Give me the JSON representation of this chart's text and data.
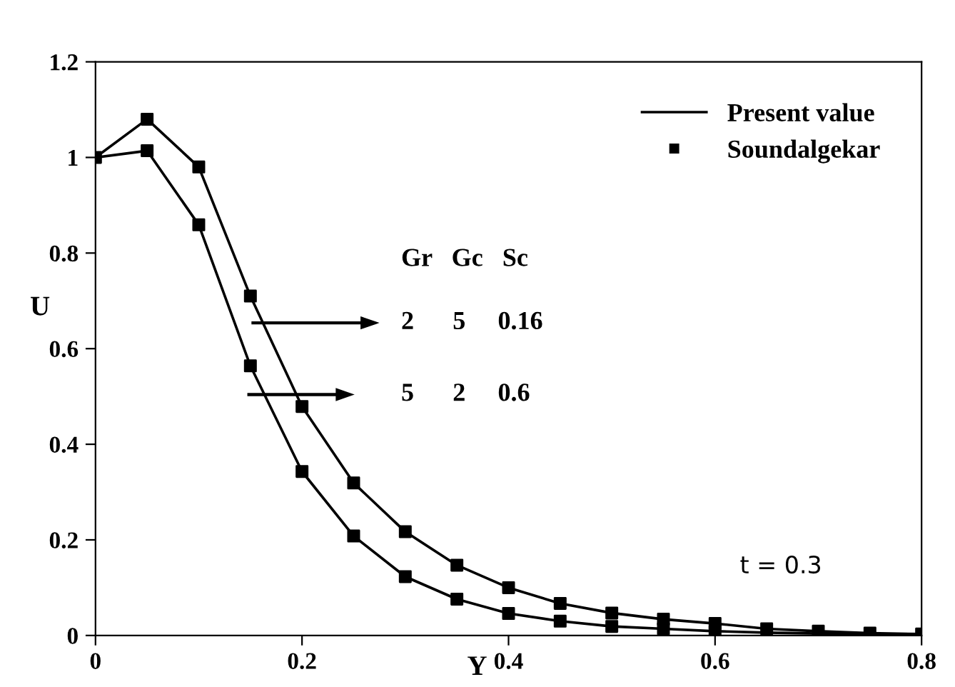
{
  "chart_data": {
    "type": "line",
    "xlabel": "Y",
    "ylabel": "U",
    "x": [
      0,
      0.05,
      0.1,
      0.15,
      0.2,
      0.25,
      0.3,
      0.35,
      0.4,
      0.45,
      0.5,
      0.55,
      0.6,
      0.65,
      0.7,
      0.75,
      0.8
    ],
    "series": [
      {
        "name": "Present value",
        "color": "#000000",
        "marker": "none",
        "line_style": "solid",
        "values": [
          1.0,
          1.08,
          0.98,
          0.71,
          0.479,
          0.319,
          0.217,
          0.147,
          0.1,
          0.067,
          0.047,
          0.034,
          0.025,
          0.014,
          0.009,
          0.005,
          0.003
        ]
      },
      {
        "color": "#000000",
        "marker": "none",
        "line_style": "solid",
        "values": [
          1.0,
          1.014,
          0.859,
          0.564,
          0.343,
          0.208,
          0.123,
          0.076,
          0.046,
          0.03,
          0.019,
          0.014,
          0.009,
          0.006,
          0.004,
          0.003,
          0.002
        ]
      },
      {
        "type": "scatter",
        "name": "Soundalgekar",
        "color": "#000000",
        "marker": "square",
        "values": [
          1.0,
          1.08,
          0.98,
          0.71,
          0.479,
          0.319,
          0.217,
          0.147,
          0.1,
          0.067,
          0.047,
          0.034,
          0.025,
          0.014,
          0.009,
          0.005,
          0.003
        ]
      },
      {
        "type": "scatter",
        "color": "#000000",
        "marker": "square",
        "values": [
          null,
          1.014,
          0.859,
          0.564,
          0.343,
          0.208,
          0.123,
          0.076,
          0.046,
          0.03,
          0.019,
          0.014,
          0.009,
          null,
          null,
          null,
          null
        ]
      }
    ],
    "xlim": [
      0,
      0.8
    ],
    "xticks": [
      0,
      0.2,
      0.4,
      0.6,
      0.8
    ],
    "ylim": [
      0,
      1.2
    ],
    "yticks": [
      0,
      0.2,
      0.4,
      0.6,
      0.8,
      1,
      1.2
    ],
    "grid": false,
    "legend": "top right",
    "annotations": [
      "Gr   Gc   Sc",
      "2      5     0.16",
      "5      2     0.6",
      "t = 0.3"
    ]
  }
}
